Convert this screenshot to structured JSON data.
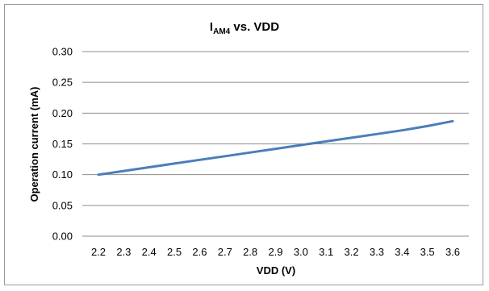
{
  "chart_data": {
    "type": "line",
    "title": {
      "main": "I",
      "subscript": "AM4",
      "rest": " vs. VDD"
    },
    "xlabel": "VDD (V)",
    "ylabel": "Operation current (mA)",
    "x_ticks": [
      "2.2",
      "2.3",
      "2.4",
      "2.5",
      "2.6",
      "2.7",
      "2.8",
      "2.9",
      "3.0",
      "3.1",
      "3.2",
      "3.3",
      "3.4",
      "3.5",
      "3.6"
    ],
    "y_ticks": [
      "0.00",
      "0.05",
      "0.10",
      "0.15",
      "0.20",
      "0.25",
      "0.30"
    ],
    "xlim": [
      2.2,
      3.6
    ],
    "ylim": [
      0,
      0.3
    ],
    "grid": "horizontal",
    "legend": "none",
    "series": [
      {
        "color": "#4a7ebb",
        "x": [
          2.2,
          2.3,
          2.4,
          2.5,
          2.6,
          2.7,
          2.8,
          2.9,
          3.0,
          3.1,
          3.2,
          3.3,
          3.4,
          3.5,
          3.6
        ],
        "y": [
          0.1,
          0.106,
          0.112,
          0.118,
          0.124,
          0.13,
          0.136,
          0.142,
          0.148,
          0.154,
          0.16,
          0.166,
          0.172,
          0.179,
          0.187
        ]
      }
    ]
  },
  "colors": {
    "gridline": "#8c8c8c",
    "axis": "#8c8c8c",
    "frame": "#9a9a9a"
  }
}
